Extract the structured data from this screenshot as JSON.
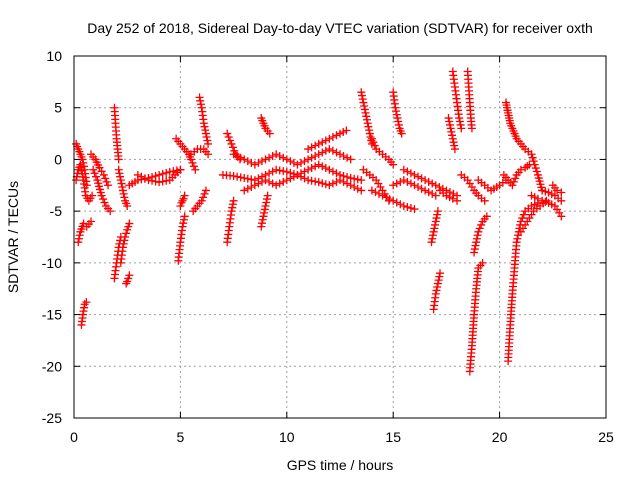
{
  "chart_data": {
    "type": "scatter",
    "title": "Day 252 of 2018, Sidereal Day-to-day VTEC variation (SDTVAR) for receiver oxth",
    "xlabel": "GPS time / hours",
    "ylabel": "SDTVAR / TECUs",
    "xlim": [
      0,
      25
    ],
    "ylim": [
      -25,
      10
    ],
    "xticks": [
      0,
      5,
      10,
      15,
      20,
      25
    ],
    "yticks": [
      -25,
      -20,
      -15,
      -10,
      -5,
      0,
      5,
      10
    ],
    "grid": true,
    "marker": "+",
    "series": [
      {
        "name": "SDTVAR",
        "color": "#ff0000",
        "segments": [
          {
            "x": [
              0.1,
              0.2,
              0.3,
              0.45,
              0.55,
              0.7,
              0.85
            ],
            "y": [
              -2.0,
              -1.0,
              -0.5,
              -2.0,
              -3.5,
              -4.0,
              -3.5
            ]
          },
          {
            "x": [
              0.1,
              0.2,
              0.3,
              0.4,
              0.5,
              0.6
            ],
            "y": [
              1.5,
              1.0,
              0.5,
              0.0,
              -1.0,
              -2.5
            ]
          },
          {
            "x": [
              0.2,
              0.3,
              0.45,
              0.6,
              0.8
            ],
            "y": [
              -8.0,
              -7.0,
              -6.2,
              -6.5,
              -6.0
            ]
          },
          {
            "x": [
              0.35,
              0.42,
              0.5,
              0.58
            ],
            "y": [
              -16.0,
              -15.0,
              -14.0,
              -13.8
            ]
          },
          {
            "x": [
              0.9,
              1.1,
              1.3,
              1.5,
              1.7
            ],
            "y": [
              -1.0,
              -2.0,
              -3.5,
              -4.5,
              -5.0
            ]
          },
          {
            "x": [
              0.8,
              1.0,
              1.2,
              1.4,
              1.6
            ],
            "y": [
              0.5,
              0.0,
              -0.8,
              -1.5,
              -2.5
            ]
          },
          {
            "x": [
              1.9,
              1.95,
              2.0,
              2.05,
              2.1
            ],
            "y": [
              5.0,
              3.5,
              2.0,
              1.0,
              0.0
            ]
          },
          {
            "x": [
              1.9,
              2.0,
              2.1,
              2.2
            ],
            "y": [
              -11.5,
              -10.0,
              -8.5,
              -7.5
            ]
          },
          {
            "x": [
              2.1,
              2.2,
              2.3,
              2.4,
              2.5
            ],
            "y": [
              -1.0,
              -2.0,
              -3.0,
              -4.0,
              -4.5
            ]
          },
          {
            "x": [
              2.2,
              2.3,
              2.4,
              2.5,
              2.6
            ],
            "y": [
              -10.0,
              -8.5,
              -7.5,
              -6.8,
              -6.2
            ]
          },
          {
            "x": [
              2.45,
              2.5,
              2.55,
              2.6
            ],
            "y": [
              -12.0,
              -11.8,
              -11.5,
              -11.2
            ]
          },
          {
            "x": [
              2.6,
              3.0,
              3.5,
              4.0,
              4.5,
              5.0
            ],
            "y": [
              -2.5,
              -2.0,
              -1.8,
              -1.5,
              -1.2,
              -1.0
            ]
          },
          {
            "x": [
              3.0,
              3.5,
              4.0,
              4.5,
              5.0
            ],
            "y": [
              -1.5,
              -2.0,
              -2.2,
              -2.0,
              -1.0
            ]
          },
          {
            "x": [
              4.8,
              5.0,
              5.2,
              5.4,
              5.5,
              5.7
            ],
            "y": [
              2.0,
              1.5,
              1.0,
              0.5,
              0.0,
              -1.0
            ]
          },
          {
            "x": [
              4.9,
              5.0,
              5.1,
              5.2
            ],
            "y": [
              -9.8,
              -8.0,
              -6.5,
              -5.5
            ]
          },
          {
            "x": [
              5.0,
              5.05,
              5.1,
              5.15,
              5.2
            ],
            "y": [
              -4.5,
              -4.2,
              -4.0,
              -3.8,
              -3.5
            ]
          },
          {
            "x": [
              5.9,
              6.0,
              6.1,
              6.2,
              6.3
            ],
            "y": [
              6.0,
              5.0,
              3.5,
              2.5,
              1.5
            ]
          },
          {
            "x": [
              5.6,
              5.8,
              6.0,
              6.2
            ],
            "y": [
              -5.0,
              -4.5,
              -4.0,
              -3.0
            ]
          },
          {
            "x": [
              5.5,
              5.8,
              6.1,
              6.3
            ],
            "y": [
              0.5,
              1.0,
              1.0,
              0.5
            ]
          },
          {
            "x": [
              7.2,
              7.3,
              7.4,
              7.5
            ],
            "y": [
              -8.0,
              -6.5,
              -5.0,
              -4.0
            ]
          },
          {
            "x": [
              7.2,
              7.4,
              7.6,
              7.8
            ],
            "y": [
              2.5,
              1.5,
              0.5,
              0.0
            ]
          },
          {
            "x": [
              7.0,
              7.5,
              8.0,
              8.5,
              9.0,
              9.5,
              10.0,
              10.5,
              11.0,
              11.5,
              12.0,
              12.5,
              13.0,
              13.5
            ],
            "y": [
              -1.5,
              -1.6,
              -1.8,
              -2.0,
              -1.5,
              -1.0,
              -1.2,
              -1.5,
              -1.0,
              -0.5,
              -1.0,
              -1.5,
              -1.8,
              -2.0
            ]
          },
          {
            "x": [
              7.5,
              8.0,
              8.5,
              9.0,
              9.5,
              10.0,
              10.5,
              11.0,
              11.5,
              12.0,
              12.5,
              13.0
            ],
            "y": [
              0.5,
              0.0,
              -0.5,
              0.0,
              0.5,
              0.0,
              -0.5,
              0.0,
              0.5,
              1.0,
              0.5,
              0.0
            ]
          },
          {
            "x": [
              8.0,
              8.5,
              9.0,
              9.5,
              10.0,
              10.5,
              11.0,
              11.5,
              12.0,
              12.5,
              13.0,
              13.5
            ],
            "y": [
              -3.0,
              -2.5,
              -2.0,
              -2.5,
              -2.0,
              -1.5,
              -2.0,
              -2.2,
              -2.5,
              -2.0,
              -2.5,
              -3.0
            ]
          },
          {
            "x": [
              8.8,
              8.9,
              9.0,
              9.1
            ],
            "y": [
              -6.5,
              -5.5,
              -4.5,
              -3.5
            ]
          },
          {
            "x": [
              8.8,
              8.9,
              9.0,
              9.2
            ],
            "y": [
              4.0,
              3.5,
              3.0,
              2.5
            ]
          },
          {
            "x": [
              11.0,
              11.5,
              12.0,
              12.5,
              12.8
            ],
            "y": [
              1.0,
              1.5,
              2.0,
              2.5,
              2.8
            ]
          },
          {
            "x": [
              13.5,
              13.6,
              13.7,
              13.8,
              13.9,
              14.0
            ],
            "y": [
              6.5,
              5.5,
              4.5,
              3.5,
              2.5,
              1.5
            ]
          },
          {
            "x": [
              13.6,
              13.9,
              14.2,
              14.5,
              14.8
            ],
            "y": [
              -1.0,
              -1.5,
              -2.0,
              -3.0,
              -4.0
            ]
          },
          {
            "x": [
              14.0,
              14.2,
              14.5,
              14.8,
              15.0
            ],
            "y": [
              2.0,
              1.0,
              0.5,
              0.0,
              -0.5
            ]
          },
          {
            "x": [
              15.0,
              15.1,
              15.2,
              15.3,
              15.4
            ],
            "y": [
              6.5,
              5.0,
              4.0,
              3.0,
              2.5
            ]
          },
          {
            "x": [
              14.0,
              14.5,
              15.0,
              15.5,
              16.0
            ],
            "y": [
              -3.0,
              -3.5,
              -4.0,
              -4.5,
              -4.8
            ]
          },
          {
            "x": [
              15.0,
              15.5,
              16.0,
              16.5,
              17.0
            ],
            "y": [
              -2.5,
              -2.0,
              -2.5,
              -3.0,
              -3.5
            ]
          },
          {
            "x": [
              15.5,
              16.0,
              16.5,
              17.0,
              17.5,
              18.0
            ],
            "y": [
              -1.0,
              -1.5,
              -2.0,
              -2.5,
              -3.0,
              -3.5
            ]
          },
          {
            "x": [
              16.9,
              17.0,
              17.1,
              17.2
            ],
            "y": [
              -14.5,
              -13.0,
              -12.0,
              -11.0
            ]
          },
          {
            "x": [
              16.8,
              16.9,
              17.0,
              17.1
            ],
            "y": [
              -8.0,
              -7.0,
              -6.0,
              -5.0
            ]
          },
          {
            "x": [
              17.2,
              17.5,
              17.8,
              18.0
            ],
            "y": [
              -3.0,
              -3.5,
              -3.8,
              -4.0
            ]
          },
          {
            "x": [
              17.8,
              17.9,
              18.0,
              18.1,
              18.2
            ],
            "y": [
              8.5,
              7.0,
              5.5,
              4.0,
              3.0
            ]
          },
          {
            "x": [
              17.6,
              17.7,
              17.8,
              17.9
            ],
            "y": [
              4.0,
              3.0,
              2.0,
              1.0
            ]
          },
          {
            "x": [
              18.5,
              18.55,
              18.6,
              18.65,
              18.7
            ],
            "y": [
              8.5,
              7.0,
              5.5,
              4.0,
              3.0
            ]
          },
          {
            "x": [
              18.6,
              18.7,
              18.8,
              18.9,
              19.0,
              19.2
            ],
            "y": [
              -20.5,
              -18.0,
              -15.0,
              -12.5,
              -10.5,
              -10.0
            ]
          },
          {
            "x": [
              18.8,
              19.0,
              19.2,
              19.4
            ],
            "y": [
              -9.0,
              -7.0,
              -6.0,
              -5.5
            ]
          },
          {
            "x": [
              18.2,
              18.5,
              18.8,
              19.0,
              19.3
            ],
            "y": [
              -1.5,
              -2.0,
              -3.0,
              -3.5,
              -4.0
            ]
          },
          {
            "x": [
              19.0,
              19.3,
              19.6,
              20.0,
              20.3
            ],
            "y": [
              -2.0,
              -2.5,
              -3.0,
              -2.5,
              -2.0
            ]
          },
          {
            "x": [
              20.2,
              20.4,
              20.6,
              20.8,
              21.0,
              21.2,
              21.4
            ],
            "y": [
              -1.5,
              -2.0,
              -2.5,
              -1.5,
              -1.0,
              -0.8,
              -0.5
            ]
          },
          {
            "x": [
              20.3,
              20.35,
              20.4,
              20.45,
              20.5,
              20.6,
              20.7,
              20.8,
              21.0,
              21.2,
              21.5,
              21.8,
              22.0
            ],
            "y": [
              5.5,
              5.0,
              4.5,
              4.0,
              3.5,
              3.0,
              2.5,
              2.0,
              1.5,
              1.0,
              0.5,
              -1.5,
              -3.0
            ]
          },
          {
            "x": [
              20.4,
              20.5,
              20.6,
              20.7,
              20.8,
              21.0,
              21.2,
              21.5,
              21.8
            ],
            "y": [
              -19.5,
              -16.0,
              -13.0,
              -10.5,
              -8.0,
              -6.0,
              -5.0,
              -4.5,
              -4.2
            ]
          },
          {
            "x": [
              21.0,
              21.3,
              21.6,
              21.9,
              22.2
            ],
            "y": [
              -7.0,
              -6.0,
              -5.0,
              -4.5,
              -4.0
            ]
          },
          {
            "x": [
              21.5,
              21.8,
              22.0,
              22.3,
              22.6,
              22.9
            ],
            "y": [
              -3.5,
              -3.8,
              -4.0,
              -4.2,
              -4.5,
              -5.5
            ]
          },
          {
            "x": [
              22.0,
              22.3,
              22.6,
              22.9
            ],
            "y": [
              -3.0,
              -3.2,
              -3.5,
              -4.0
            ]
          },
          {
            "x": [
              22.5,
              22.7,
              22.9
            ],
            "y": [
              -2.5,
              -3.0,
              -3.2
            ]
          }
        ]
      }
    ]
  }
}
